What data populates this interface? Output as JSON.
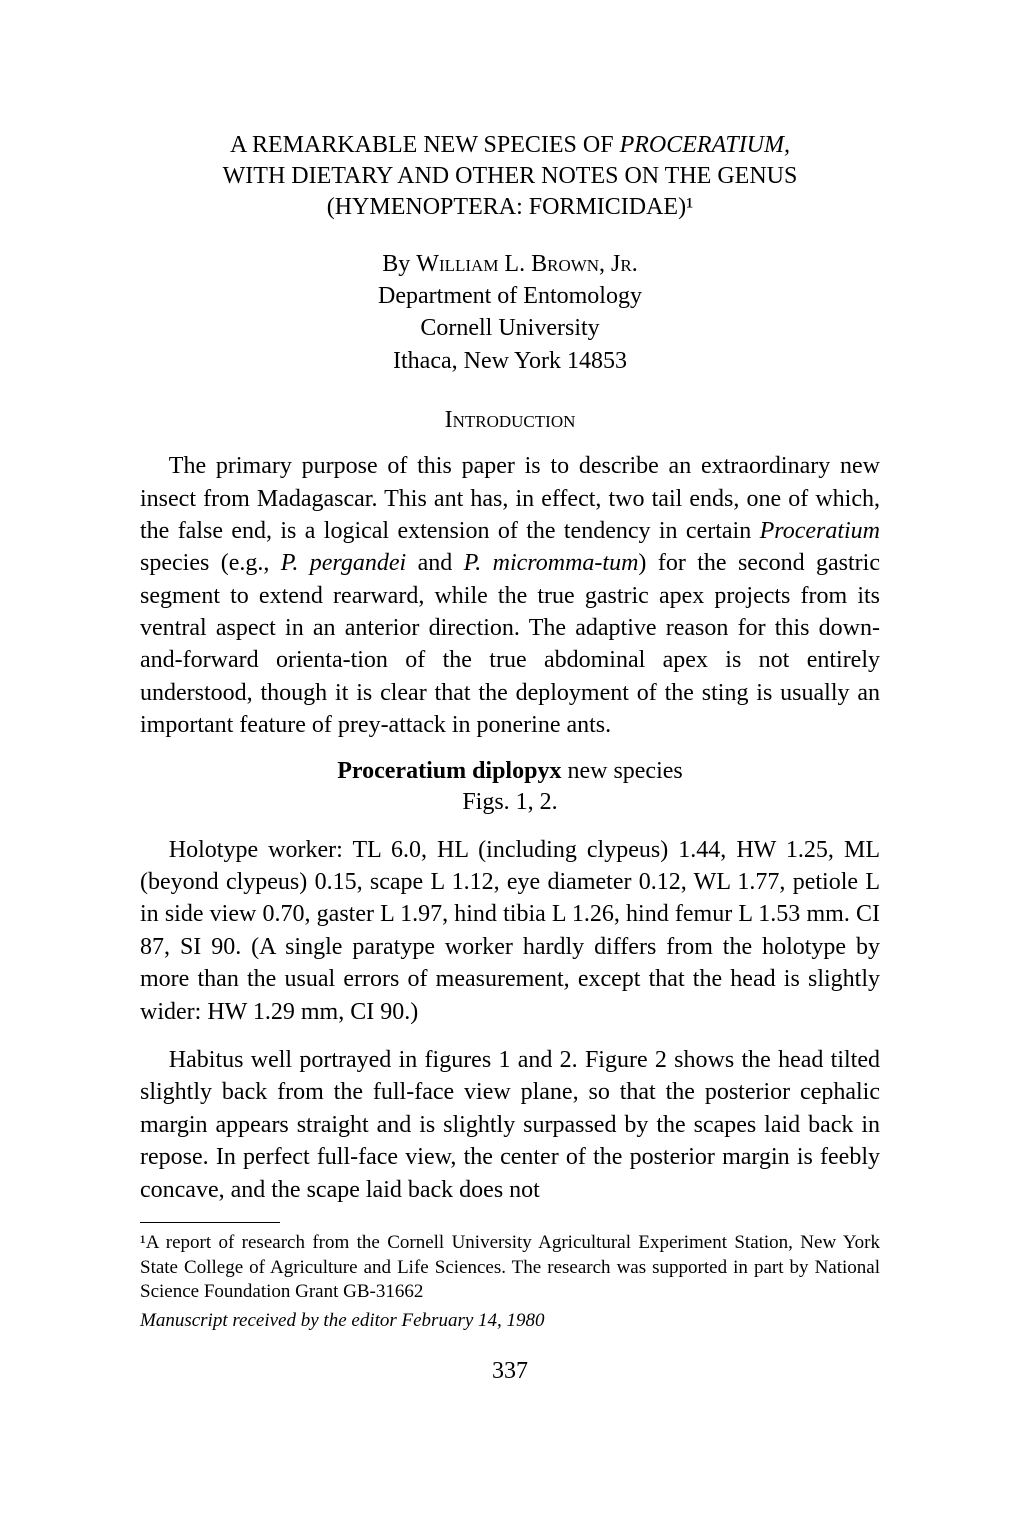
{
  "title_line1": "A REMARKABLE NEW SPECIES OF ",
  "title_line1_italic": "PROCERATIUM,",
  "title_line2": "WITH DIETARY AND OTHER NOTES ON THE GENUS",
  "title_line3": "(HYMENOPTERA: FORMICIDAE)¹",
  "author_by": "By ",
  "author_name": "William L. Brown, Jr.",
  "author_dept": "Department of Entomology",
  "author_univ": "Cornell University",
  "author_addr": "Ithaca, New York 14853",
  "section_intro": "Introduction",
  "intro_p1_a": "The primary purpose of this paper is to describe an extraordinary new insect from Madagascar. This ant has, in effect, two tail ends, one of which, the false end, is a logical extension of the tendency in certain ",
  "intro_p1_b": "Proceratium",
  "intro_p1_c": " species (e.g., ",
  "intro_p1_d": "P. pergandei",
  "intro_p1_e": " and ",
  "intro_p1_f": "P. micromma-tum",
  "intro_p1_g": ") for the second gastric segment to extend rearward, while the true gastric apex projects from its ventral aspect in an anterior direction. The adaptive reason for this down-and-forward orienta-tion of the true abdominal apex is not entirely understood, though it is clear that the deployment of the sting is usually an important feature of prey-attack in ponerine ants.",
  "species_name": "Proceratium diplopyx",
  "species_status": " new species",
  "figs": "Figs. 1, 2.",
  "holo_p": "Holotype worker: TL 6.0, HL (including clypeus) 1.44, HW 1.25, ML (beyond clypeus) 0.15, scape L 1.12, eye diameter 0.12, WL 1.77, petiole L in side view 0.70, gaster L 1.97, hind tibia L 1.26, hind femur L 1.53 mm. CI 87, SI 90. (A single paratype worker hardly differs from the holotype by more than the usual errors of measurement, except that the head is slightly wider: HW 1.29 mm, CI 90.)",
  "habitus_p": "Habitus well portrayed in figures 1 and 2. Figure 2 shows the head tilted slightly back from the full-face view plane, so that the posterior cephalic margin appears straight and is slightly surpassed by the scapes laid back in repose. In perfect full-face view, the center of the posterior margin is feebly concave, and the scape laid back does not",
  "footnote1": "¹A report of research from the Cornell University Agricultural Experiment Station, New York State College of Agriculture and Life Sciences. The research was supported in part by National Science Foundation Grant GB-31662",
  "footnote2": "Manuscript received by the editor February 14, 1980",
  "page_number": "337"
}
